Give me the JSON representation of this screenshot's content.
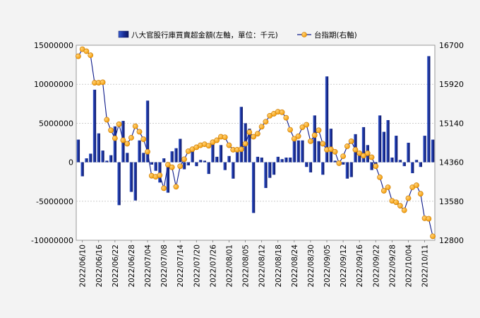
{
  "chart_data": {
    "type": "bar+line",
    "title": "",
    "legend": {
      "placement": "top-center",
      "items": [
        {
          "label": "八大官股行庫買賣超金額(左軸，單位：千元)",
          "kind": "bar"
        },
        {
          "label": "台指期(右軸)",
          "kind": "line"
        }
      ]
    },
    "left_axis": {
      "min": -10000000,
      "max": 15000000,
      "ticks": [
        15000000,
        10000000,
        5000000,
        0,
        -5000000,
        -10000000
      ],
      "tick_labels": [
        "15000000",
        "10000000",
        "5000000",
        "0",
        "-5000000",
        "-10000000"
      ]
    },
    "right_axis": {
      "min": 12800,
      "max": 16700,
      "ticks": [
        16700,
        15920,
        15140,
        14360,
        13580,
        12800
      ],
      "tick_labels": [
        "16700",
        "15920",
        "15140",
        "14360",
        "13580",
        "12800"
      ]
    },
    "x_tick_labels": [
      "2022/06/10",
      "2022/06/16",
      "2022/06/22",
      "2022/06/28",
      "2022/07/04",
      "2022/07/08",
      "2022/07/14",
      "2022/07/20",
      "2022/07/26",
      "2022/08/01",
      "2022/08/05",
      "2022/08/12",
      "2022/08/18",
      "2022/08/24",
      "2022/08/30",
      "2022/09/05",
      "2022/09/12",
      "2022/09/16",
      "2022/09/22",
      "2022/09/28",
      "2022/10/04",
      "2022/10/11"
    ],
    "x_tick_index_step": 4,
    "grid": true,
    "bar_values": [
      2900000,
      -1800000,
      500000,
      1100000,
      9300000,
      3700000,
      1500000,
      200000,
      900000,
      4600000,
      -5500000,
      5300000,
      1200000,
      -3800000,
      -4900000,
      2800000,
      1200000,
      7900000,
      -300000,
      -1100000,
      -2600000,
      500000,
      -3900000,
      1400000,
      1800000,
      3000000,
      -900000,
      -400000,
      1500000,
      -500000,
      300000,
      200000,
      -1500000,
      2400000,
      700000,
      2200000,
      -1000000,
      800000,
      -2100000,
      1400000,
      7100000,
      5000000,
      4300000,
      -6500000,
      700000,
      600000,
      -3300000,
      -2000000,
      -1600000,
      700000,
      400000,
      600000,
      600000,
      3100000,
      2800000,
      2800000,
      -600000,
      -1300000,
      6000000,
      2700000,
      -1600000,
      11000000,
      4300000,
      200000,
      -100000,
      -300000,
      -2100000,
      -1900000,
      3600000,
      1400000,
      4500000,
      2200000,
      -1000000,
      -600000,
      6000000,
      3900000,
      5400000,
      600000,
      3400000,
      300000,
      -500000,
      2500000,
      -1400000,
      300000,
      -600000,
      3400000,
      13600000,
      2900000
    ],
    "line_values": [
      16480,
      16620,
      16580,
      16500,
      15950,
      15950,
      15960,
      15210,
      15000,
      14840,
      15120,
      14800,
      14730,
      14850,
      15080,
      14970,
      14820,
      14570,
      14090,
      14070,
      14100,
      13840,
      14310,
      14260,
      13870,
      14280,
      14420,
      14580,
      14620,
      14660,
      14700,
      14720,
      14690,
      14760,
      14800,
      14870,
      14860,
      14700,
      14610,
      14610,
      14620,
      14730,
      14960,
      14870,
      14930,
      15070,
      15170,
      15290,
      15330,
      15370,
      15360,
      15250,
      15010,
      14830,
      14880,
      15060,
      15110,
      14780,
      14900,
      15000,
      14730,
      14610,
      14620,
      14570,
      14340,
      14480,
      14680,
      14780,
      14610,
      14540,
      14490,
      14540,
      14460,
      14280,
      14060,
      13790,
      13860,
      13590,
      13560,
      13490,
      13400,
      13640,
      13860,
      13900,
      13730,
      13240,
      13230,
      12880
    ]
  }
}
